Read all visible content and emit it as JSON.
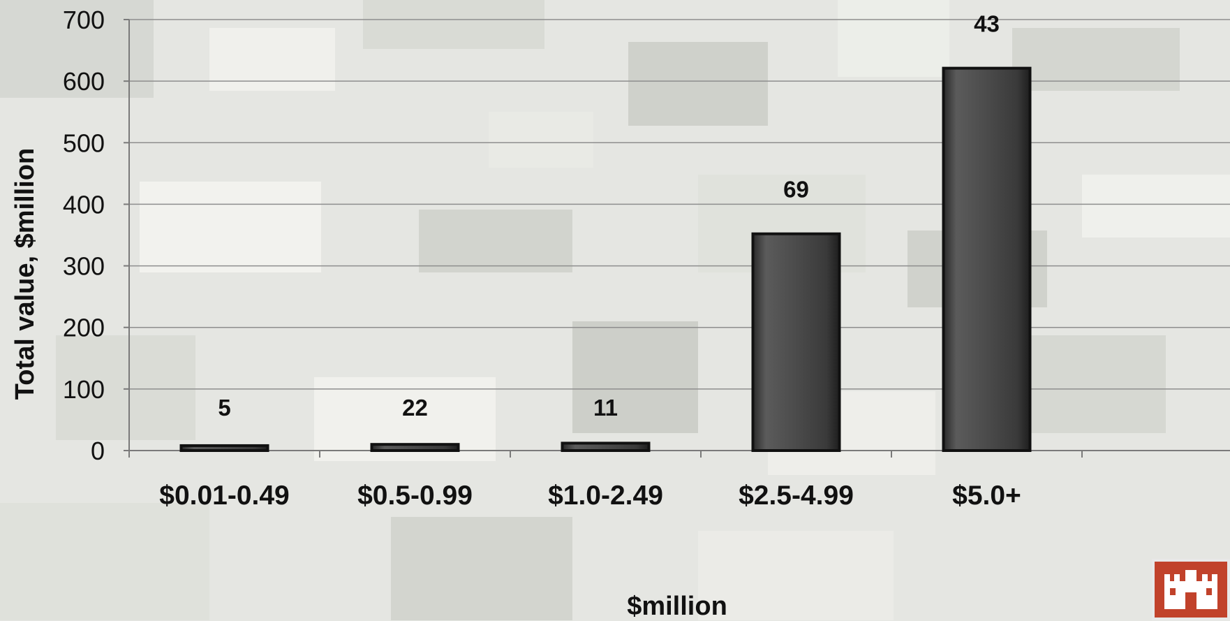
{
  "chart_data": {
    "type": "bar",
    "title": "",
    "xlabel": "$million",
    "ylabel": "Total value,  $million",
    "categories": [
      "$0.01-0.49",
      "$0.5-0.99",
      "$1.0-2.49",
      "$2.5-4.99",
      "$5.0+"
    ],
    "values": [
      8,
      10,
      12,
      352,
      621
    ],
    "data_labels": [
      "5",
      "22",
      "11",
      "69",
      "43"
    ],
    "ylim": [
      0,
      700
    ],
    "yticks": [
      0,
      100,
      200,
      300,
      400,
      500,
      600,
      700
    ],
    "grid": true,
    "legend": "none",
    "bar_color": "#4a4a4a"
  },
  "logo": {
    "icon": "castle-icon",
    "color": "#c1422b"
  }
}
